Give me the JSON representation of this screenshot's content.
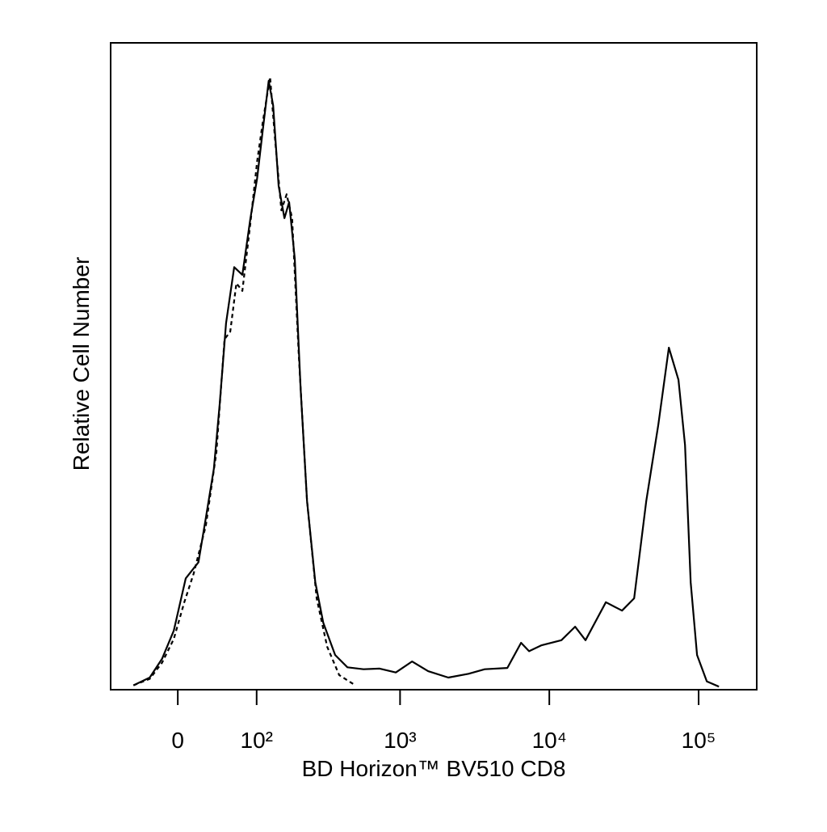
{
  "chart_data": {
    "type": "line",
    "x_label": "BD Horizon™ BV510 CD8",
    "y_label": "Relative Cell Number",
    "xscale": "biexponential",
    "xlim": [
      -80,
      245000
    ],
    "xticks": [
      0,
      {
        "value": 100,
        "label": "10²"
      },
      {
        "value": 1000,
        "label": "10³"
      },
      {
        "value": 10000,
        "label": "10⁴"
      },
      {
        "value": 100000,
        "label": "10⁵"
      }
    ],
    "ylim": [
      0,
      100
    ],
    "series": [
      {
        "color": "#000000",
        "dash": false,
        "x": [
          -48,
          -29,
          -16,
          -4,
          8,
          21,
          29,
          38,
          45,
          53,
          64,
          76,
          89,
          101,
          112,
          124,
          134,
          147,
          162,
          175,
          192,
          211,
          234,
          267,
          303,
          365,
          442,
          568,
          729,
          937,
          1203,
          1542,
          2106,
          2880,
          3692,
          5233,
          6468,
          7319,
          8827,
          12045,
          14885,
          17485,
          23920,
          30680,
          36985,
          44590,
          53755,
          63180,
          73320,
          81055,
          88465,
          97630,
          113490,
          136760
        ],
        "values": [
          0.3,
          1.5,
          4.4,
          8.8,
          16.9,
          19.4,
          26.3,
          33.9,
          43.9,
          56.5,
          65.2,
          64.0,
          72.8,
          79.0,
          86.6,
          94.1,
          90.3,
          77.8,
          72.8,
          75.3,
          66.5,
          46.4,
          28.9,
          16.3,
          10.0,
          5.0,
          3.1,
          2.8,
          2.9,
          2.3,
          4.0,
          2.5,
          1.5,
          2.1,
          2.8,
          3.0,
          6.9,
          5.6,
          6.5,
          7.3,
          9.4,
          7.3,
          13.2,
          11.9,
          13.8,
          28.9,
          40.8,
          52.7,
          47.7,
          37.6,
          16.3,
          5.0,
          0.9,
          0.1
        ]
      },
      {
        "color": "#000000",
        "dash": true,
        "x": [
          -48,
          -29,
          -16,
          -4,
          6.5,
          16,
          29,
          41,
          51,
          58.5,
          67,
          76,
          89,
          101,
          112,
          127,
          138,
          154,
          168,
          184,
          205,
          234,
          273,
          322,
          389,
          500
        ],
        "values": [
          0.3,
          1.3,
          3.8,
          7.5,
          13.2,
          17.6,
          25.1,
          36.4,
          54.0,
          55.2,
          62.7,
          61.5,
          72.1,
          81.6,
          87.8,
          94.7,
          85.3,
          74.0,
          76.5,
          72.8,
          51.4,
          28.9,
          13.8,
          6.3,
          1.9,
          0.3
        ]
      }
    ]
  }
}
